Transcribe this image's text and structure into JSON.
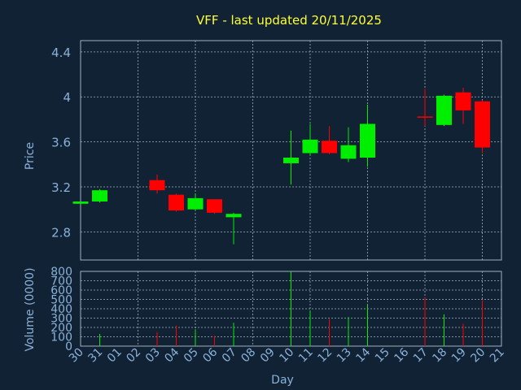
{
  "chart_data": {
    "type": "candlestick",
    "title": "VFF - last updated 20/11/2025",
    "xlabel": "Day",
    "ylabel": "Price",
    "volume_label": "Volume (0000)",
    "x_tick_labels": [
      "30",
      "31",
      "01",
      "02",
      "03",
      "04",
      "05",
      "06",
      "07",
      "08",
      "09",
      "10",
      "11",
      "12",
      "13",
      "14",
      "15",
      "16",
      "17",
      "18",
      "19",
      "20",
      "21"
    ],
    "price_ticks": [
      2.8,
      3.2,
      3.6,
      4.0,
      4.4
    ],
    "price_tick_labels": [
      "2.8",
      "3.2",
      "3.6",
      "4",
      "4.4"
    ],
    "price_range": [
      2.55,
      4.5
    ],
    "volume_ticks": [
      0,
      100,
      200,
      300,
      400,
      500,
      600,
      700,
      800
    ],
    "volume_range": [
      0,
      800
    ],
    "grid": true,
    "candles": [
      {
        "day": "30",
        "open": 3.05,
        "close": 3.07,
        "high": 3.07,
        "low": 3.05,
        "volume": 0
      },
      {
        "day": "31",
        "open": 3.07,
        "close": 3.17,
        "high": 3.18,
        "low": 3.06,
        "volume": 130
      },
      {
        "day": "03",
        "open": 3.26,
        "close": 3.17,
        "high": 3.31,
        "low": 3.14,
        "volume": 150
      },
      {
        "day": "04",
        "open": 3.13,
        "close": 2.99,
        "high": 3.14,
        "low": 2.98,
        "volume": 220
      },
      {
        "day": "05",
        "open": 3.0,
        "close": 3.1,
        "high": 3.14,
        "low": 2.99,
        "volume": 180
      },
      {
        "day": "06",
        "open": 3.09,
        "close": 2.97,
        "high": 3.09,
        "low": 2.96,
        "volume": 110
      },
      {
        "day": "07",
        "open": 2.93,
        "close": 2.96,
        "high": 2.97,
        "low": 2.69,
        "volume": 250
      },
      {
        "day": "10",
        "open": 3.41,
        "close": 3.46,
        "high": 3.7,
        "low": 3.22,
        "volume": 800
      },
      {
        "day": "11",
        "open": 3.5,
        "close": 3.62,
        "high": 3.76,
        "low": 3.48,
        "volume": 380
      },
      {
        "day": "12",
        "open": 3.61,
        "close": 3.5,
        "high": 3.74,
        "low": 3.49,
        "volume": 290
      },
      {
        "day": "13",
        "open": 3.45,
        "close": 3.57,
        "high": 3.73,
        "low": 3.42,
        "volume": 310
      },
      {
        "day": "14",
        "open": 3.46,
        "close": 3.76,
        "high": 3.93,
        "low": 3.38,
        "volume": 440
      },
      {
        "day": "17",
        "open": 3.82,
        "close": 3.82,
        "high": 4.07,
        "low": 3.74,
        "volume": 520
      },
      {
        "day": "18",
        "open": 3.75,
        "close": 4.01,
        "high": 4.02,
        "low": 3.74,
        "volume": 340
      },
      {
        "day": "19",
        "open": 4.04,
        "close": 3.88,
        "high": 4.08,
        "low": 3.76,
        "volume": 240
      },
      {
        "day": "20",
        "open": 3.96,
        "close": 3.55,
        "high": 3.97,
        "low": 3.5,
        "volume": 490
      }
    ],
    "colors": {
      "background": "#112235",
      "axis_text": "#8ab1d8",
      "title": "#ffff33",
      "grid": "#a3b0bd",
      "up": "#00ee00",
      "down": "#ff0000",
      "neutral": "#ff0000"
    }
  }
}
